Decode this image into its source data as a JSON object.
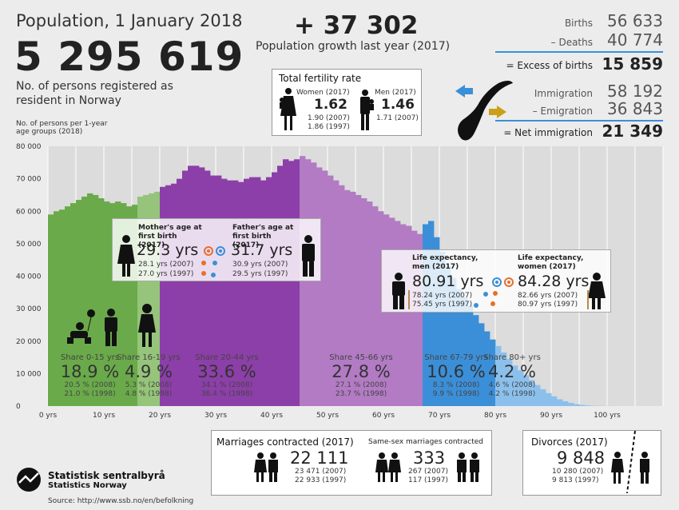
{
  "header": {
    "title": "Population, 1 January 2018",
    "population": "5 295 619",
    "description": "No. of persons registered as resident in Norway"
  },
  "growth": {
    "value": "+ 37 302",
    "label": "Population growth last year (2017)"
  },
  "fertility": {
    "title": "Total fertility rate",
    "women_label": "Women (2017)",
    "women_value": "1.62",
    "women_2007": "1.90 (2007)",
    "women_1997": "1.86 (1997)",
    "men_label": "Men (2017)",
    "men_value": "1.46",
    "men_2007": "1.71 (2007)"
  },
  "stats": {
    "births_label": "Births",
    "births_value": "56 633",
    "deaths_label": "– Deaths",
    "deaths_value": "40 774",
    "excess_label": "= Excess of births",
    "excess_value": "15 859",
    "immigration_label": "Immigration",
    "immigration_value": "58 192",
    "emigration_label": "– Emigration",
    "emigration_value": "36 843",
    "net_label": "= Net immigration",
    "net_value": "21 349"
  },
  "chart_ylabel": "No. of persons per 1-year age groups (2018)",
  "parents": {
    "mother_title": "Mother's age at first birth (2017)",
    "mother_value": "29.3 yrs",
    "mother_2007": "28.1 yrs (2007)",
    "mother_1997": "27.0 yrs (1997)",
    "father_title": "Father's age at first birth (2017)",
    "father_value": "31.7 yrs",
    "father_2007": "30.9 yrs (2007)",
    "father_1997": "29.5 yrs (1997)"
  },
  "life": {
    "men_title": "Life expectancy, men (2017)",
    "men_value": "80.91 yrs",
    "men_2007": "78.24 yrs (2007)",
    "men_1998": "75.45 yrs (1997)",
    "women_title": "Life expectancy, women (2017)",
    "women_value": "84.28 yrs",
    "women_2007": "82.66 yrs (2007)",
    "women_1997": "80.97 yrs (1997)"
  },
  "shares": [
    {
      "label": "Share 0-15 yrs",
      "value": "18.9 %",
      "y2008": "20.5 % (2008)",
      "y1998": "21.0 % (1998)"
    },
    {
      "label": "Share 16-19 yrs",
      "value": "4.9 %",
      "y2008": "5.3 % (2008)",
      "y1998": "4.8 % (1998)"
    },
    {
      "label": "Share 20-44 yrs",
      "value": "33.6 %",
      "y2008": "34.1 % (2008)",
      "y1998": "36.4 % (1998)"
    },
    {
      "label": "Share 45-66 yrs",
      "value": "27.8 %",
      "y2008": "27.1 % (2008)",
      "y1998": "23.7 % (1998)"
    },
    {
      "label": "Share 67-79 yrs",
      "value": "10.6 %",
      "y2008": "8.3 % (2008)",
      "y1998": "9.9 % (1998)"
    },
    {
      "label": "Share 80+ yrs",
      "value": "4.2 %",
      "y2008": "4.6 % (2008)",
      "y1998": "4.2 % (1998)"
    }
  ],
  "marriages": {
    "title": "Marriages contracted (2017)",
    "value": "22 111",
    "y2007": "23 471 (2007)",
    "y1997": "22 933 (1997)",
    "same_sex_title": "Same-sex marriages contracted",
    "same_sex_value": "333",
    "same_sex_2007": "267 (2007)",
    "same_sex_1997": "117 (1997)"
  },
  "divorces": {
    "title": "Divorces (2017)",
    "value": "9 848",
    "y2007": "10 280 (2007)",
    "y1997": "9 813 (1997)"
  },
  "logo": {
    "name": "Statistisk sentralbyrå",
    "subname": "Statistics Norway"
  },
  "source": "Source: http://www.ssb.no/en/befolkning",
  "colors": {
    "green": "#6aaa4a",
    "light_green": "#95c47a",
    "purple": "#8c3fa8",
    "light_purple": "#b27bc4",
    "blue": "#3b8fd8",
    "light_blue": "#8cc0ec",
    "grid_bg": "#dcdcdc"
  },
  "chart_data": {
    "type": "bar",
    "xlabel": "",
    "ylabel": "No. of persons per 1-year age groups (2018)",
    "ylim": [
      0,
      80000
    ],
    "yticks": [
      "0",
      "10 000",
      "20 000",
      "30 000",
      "40 000",
      "50 000",
      "60 000",
      "70 000",
      "80 000"
    ],
    "xticks": [
      "0 yrs",
      "10 yrs",
      "20 yrs",
      "30 yrs",
      "40 yrs",
      "50 yrs",
      "60 yrs",
      "70 yrs",
      "80 yrs",
      "90 yrs",
      "100 yrs"
    ],
    "xtick_values": [
      0,
      10,
      20,
      30,
      40,
      50,
      60,
      70,
      80,
      90,
      100
    ],
    "grid": true,
    "ages": [
      0,
      1,
      2,
      3,
      4,
      5,
      6,
      7,
      8,
      9,
      10,
      11,
      12,
      13,
      14,
      15,
      16,
      17,
      18,
      19,
      20,
      21,
      22,
      23,
      24,
      25,
      26,
      27,
      28,
      29,
      30,
      31,
      32,
      33,
      34,
      35,
      36,
      37,
      38,
      39,
      40,
      41,
      42,
      43,
      44,
      45,
      46,
      47,
      48,
      49,
      50,
      51,
      52,
      53,
      54,
      55,
      56,
      57,
      58,
      59,
      60,
      61,
      62,
      63,
      64,
      65,
      66,
      67,
      68,
      69,
      70,
      71,
      72,
      73,
      74,
      75,
      76,
      77,
      78,
      79,
      80,
      81,
      82,
      83,
      84,
      85,
      86,
      87,
      88,
      89,
      90,
      91,
      92,
      93,
      94,
      95,
      96,
      97,
      98,
      99,
      100,
      101,
      102,
      103,
      104,
      105
    ],
    "values": [
      59000,
      60000,
      60500,
      61500,
      62500,
      63500,
      64500,
      65500,
      65000,
      64000,
      63000,
      62500,
      63000,
      62500,
      61500,
      62000,
      64500,
      65000,
      65500,
      66000,
      67500,
      68000,
      68500,
      70000,
      72500,
      74000,
      74000,
      73500,
      72500,
      71000,
      71000,
      70000,
      69500,
      69500,
      69000,
      70000,
      70500,
      70500,
      69500,
      70500,
      72000,
      74000,
      76000,
      75500,
      76000,
      77000,
      76000,
      75000,
      73500,
      72500,
      71000,
      69500,
      68000,
      66500,
      66000,
      65000,
      64000,
      63000,
      61500,
      60000,
      59000,
      58000,
      57000,
      56000,
      55500,
      54000,
      53000,
      56000,
      57000,
      52000,
      47500,
      43000,
      39500,
      36000,
      33500,
      31000,
      28000,
      25500,
      23000,
      20500,
      18500,
      16500,
      14500,
      12500,
      11000,
      9500,
      8000,
      6500,
      5200,
      4000,
      3000,
      2100,
      1500,
      1000,
      600,
      350,
      200,
      100,
      50,
      30,
      15,
      8,
      4,
      2,
      1,
      0
    ],
    "segments": [
      {
        "name": "0-15",
        "from": 0,
        "to": 15,
        "color": "#6aaa4a"
      },
      {
        "name": "16-19",
        "from": 16,
        "to": 19,
        "color": "#95c47a"
      },
      {
        "name": "20-44",
        "from": 20,
        "to": 44,
        "color": "#8c3fa8"
      },
      {
        "name": "45-66",
        "from": 45,
        "to": 66,
        "color": "#b27bc4"
      },
      {
        "name": "67-79",
        "from": 67,
        "to": 79,
        "color": "#3b8fd8"
      },
      {
        "name": "80+",
        "from": 80,
        "to": 105,
        "color": "#8cc0ec"
      }
    ]
  }
}
